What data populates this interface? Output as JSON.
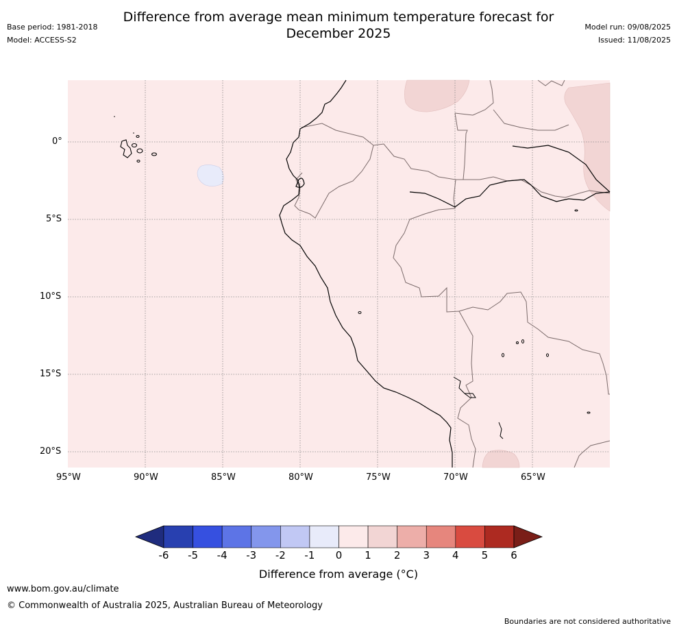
{
  "header": {
    "title_line1": "Difference from average mean minimum temperature forecast for",
    "title_line2": "December 2025",
    "base_period": "Base period: 1981-2018",
    "model": "Model: ACCESS-S2",
    "model_run": "Model run: 09/08/2025",
    "issued": "Issued: 11/08/2025"
  },
  "map": {
    "lat_labels": [
      "0°",
      "5°S",
      "10°S",
      "15°S",
      "20°S"
    ],
    "lon_labels": [
      "95°W",
      "90°W",
      "85°W",
      "80°W",
      "75°W",
      "70°W",
      "65°W"
    ],
    "colors": {
      "anomaly_0_1": "#fceaea",
      "anomaly_1_2": "#f2d5d4",
      "anomaly_m1_0": "#e8ebfa",
      "coastline": "#000000",
      "border": "#7a6a6a",
      "gridline": "#888888"
    }
  },
  "colorbar": {
    "ticks": [
      "-6",
      "-5",
      "-4",
      "-3",
      "-2",
      "-1",
      "0",
      "1",
      "2",
      "3",
      "4",
      "5",
      "6"
    ],
    "colors": [
      "#1f2c7e",
      "#2840b0",
      "#3650e0",
      "#5d74e6",
      "#8396ec",
      "#c1c8f4",
      "#e8ebfa",
      "#fceaea",
      "#f2d5d4",
      "#edaea9",
      "#e6867d",
      "#d94b40",
      "#ad2a21",
      "#7a1e18"
    ],
    "label": "Difference from average (°C)"
  },
  "footer": {
    "url": "www.bom.gov.au/climate",
    "copyright": "© Commonwealth of Australia 2025, Australian Bureau of Meteorology",
    "disclaimer": "Boundaries are not considered authoritative"
  }
}
